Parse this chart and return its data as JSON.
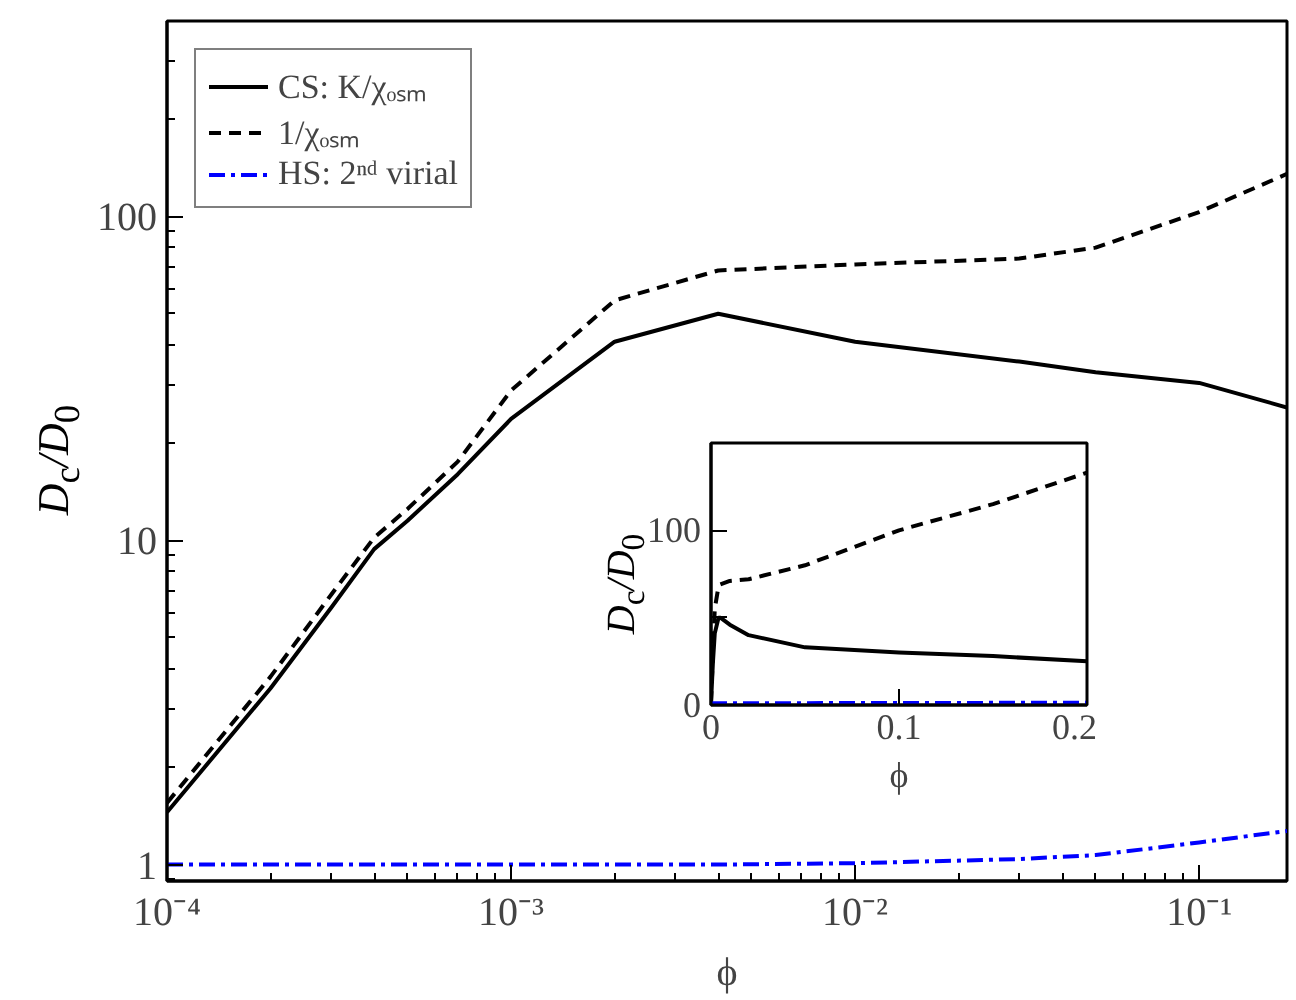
{
  "chart_data": [
    {
      "type": "line",
      "xlabel": "ϕ",
      "ylabel": "D$_{c}$/D$_{0}$",
      "log": "xy",
      "legend": "top left",
      "grid": false,
      "xlim": [
        0.0001,
        0.18
      ],
      "ylim": [
        0.89,
        400
      ],
      "xticks": [
        {
          "value": 0.0001,
          "label": "10⁻⁴"
        },
        {
          "value": 0.001,
          "label": "10⁻³"
        },
        {
          "value": 0.01,
          "label": "10⁻²"
        },
        {
          "value": 0.1,
          "label": "10⁻¹"
        }
      ],
      "yticks": [
        1,
        10,
        100
      ],
      "x": [
        0.0001,
        0.0002,
        0.0003,
        0.0004,
        0.0005,
        0.0007,
        0.001,
        0.002,
        0.004,
        0.01,
        0.03,
        0.05,
        0.1,
        0.18
      ],
      "series": [
        {
          "name": "CS: K/χₒₛₘ",
          "color": "#000000",
          "line_style": "solid",
          "values": [
            1.45,
            3.5,
            6.2,
            9.4,
            11.5,
            16,
            23.7,
            41,
            50,
            41,
            35.6,
            33,
            30.6,
            25.7
          ]
        },
        {
          "name": "1/χₒₛₘ",
          "color": "#000000",
          "line_style": "dashed",
          "values": [
            1.55,
            3.8,
            6.8,
            10.2,
            12.5,
            17.5,
            29,
            55,
            68,
            71,
            74,
            80,
            103,
            135
          ]
        },
        {
          "name": "HS: 2ⁿᵈ virial",
          "color": "#0000ff",
          "line_style": "dashdot",
          "values": [
            1.0,
            1.0,
            1.0,
            1.0,
            1.0,
            1.0,
            1.0,
            1.0,
            1.0,
            1.01,
            1.04,
            1.07,
            1.17,
            1.27
          ]
        }
      ]
    },
    {
      "type": "line",
      "xlabel": "ϕ",
      "ylabel": "D$_{c}$/D$_{0}$",
      "legend": false,
      "grid": false,
      "xlim": [
        0,
        0.2
      ],
      "ylim": [
        0,
        150
      ],
      "xticks": [
        0,
        0.1,
        0.2
      ],
      "yticks": [
        0,
        {
          "value": 50,
          "label": null
        },
        100
      ],
      "x": [
        0,
        0.001,
        0.002,
        0.004,
        0.005,
        0.01,
        0.02,
        0.05,
        0.1,
        0.15,
        0.2
      ],
      "series": [
        {
          "color": "#000000",
          "line_style": "solid",
          "values": [
            1,
            24,
            41,
            50,
            50,
            46,
            40,
            33,
            30,
            28,
            25
          ]
        },
        {
          "color": "#000000",
          "line_style": "dashed",
          "values": [
            1,
            29,
            55,
            68,
            69,
            71,
            72,
            80,
            100,
            115,
            133
          ]
        },
        {
          "color": "#0000ff",
          "line_style": "dashdot",
          "values": [
            1,
            1,
            1,
            1,
            1,
            1,
            1.02,
            1.07,
            1.17,
            1.22,
            1.3
          ]
        }
      ]
    }
  ]
}
